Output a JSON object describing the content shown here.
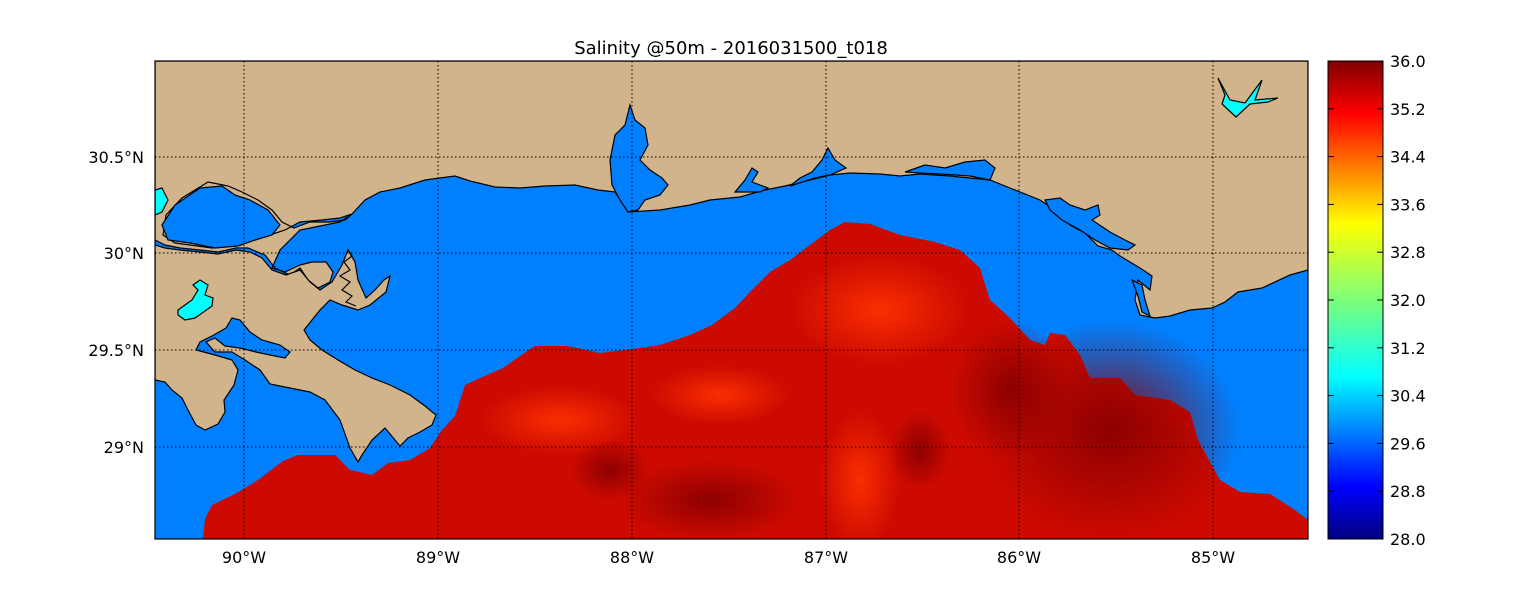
{
  "map": {
    "title": "Salinity @50m - 2016031500_t018",
    "variable": "Salinity",
    "depth": "50m",
    "run_id": "2016031500_t018",
    "extent": {
      "lon": [
        -90.5,
        -84.5
      ],
      "lat": [
        28.55,
        31.0
      ]
    },
    "lon_ticks": [
      -90,
      -89,
      -88,
      -87,
      -86,
      -85
    ],
    "lat_ticks": [
      29.0,
      29.5,
      30.0,
      30.5
    ],
    "lon_labels": [
      "90°W",
      "89°W",
      "88°W",
      "87°W",
      "86°W",
      "85°W"
    ],
    "lat_labels": [
      "29°N",
      "29.5°N",
      "30°N",
      "30.5°N"
    ],
    "grid": true,
    "colors": {
      "land": "#d2b48c",
      "no_data_water": "#0080ff",
      "lake": "#00ffff",
      "coastline": "#000000"
    },
    "salinity_region": {
      "description_value_range": [
        35.0,
        36.0
      ],
      "dominant_color": "#cc0000",
      "max_color": "#800000",
      "plume_color": "#ff3300"
    }
  },
  "colorbar": {
    "colormap": "jet",
    "min": 28.0,
    "max": 36.0,
    "tick_values": [
      36.0,
      35.2,
      34.4,
      33.6,
      32.8,
      32.0,
      31.2,
      30.4,
      29.6,
      28.8,
      28.0
    ],
    "tick_labels": [
      "36.0",
      "35.2",
      "34.4",
      "33.6",
      "32.8",
      "32.0",
      "31.2",
      "30.4",
      "29.6",
      "28.8",
      "28.0"
    ]
  }
}
